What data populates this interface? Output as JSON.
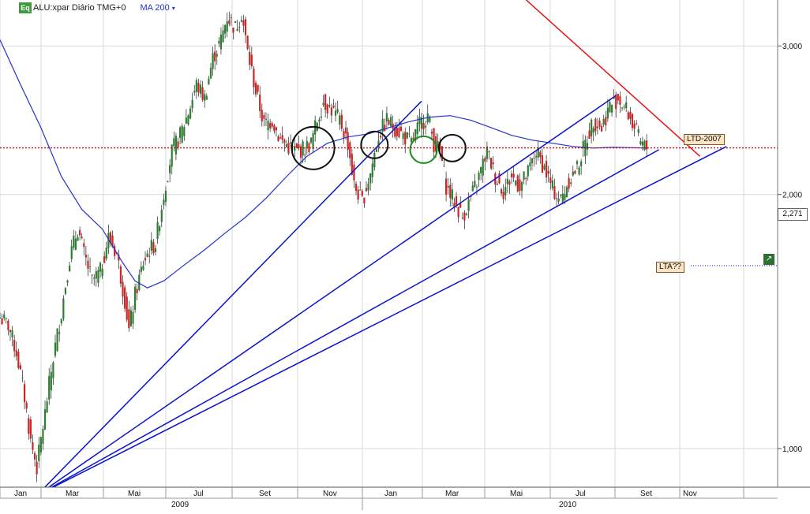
{
  "header": {
    "symbol_icon": "Eq",
    "symbol": "ALU:xpar Diário TMG+0",
    "indicator": "MA 200",
    "indicator_caret": "▾"
  },
  "colors": {
    "moving_average": "#2233cc",
    "trendlines": "#0a14cc",
    "resistance": "#ee1111",
    "price_line": "#cc0000",
    "candle_up": "#2e7d32",
    "candle_down": "#c62828",
    "circle_black": "#111111",
    "circle_green": "#1b8a1b"
  },
  "annotations": {
    "ltd": "LTD-2007",
    "lta": "LTA??",
    "last_price": "2,271",
    "chart_icon": "chart-tool-icon"
  },
  "chart_data": {
    "type": "candlestick",
    "y_scale": "log",
    "ylim": [
      0.9,
      3.4
    ],
    "y_ticks": [
      {
        "value": 1.0,
        "label": "1,000"
      },
      {
        "value": 2.0,
        "label": "2,000"
      },
      {
        "value": 3.0,
        "label": "3,000"
      }
    ],
    "x_ticks": [
      "Jan",
      "Mar",
      "Mai",
      "Jul",
      "Set",
      "Nov",
      "Jan",
      "Mar",
      "Mai",
      "Jul",
      "Set",
      "Nov"
    ],
    "x_years": [
      "2009",
      "2010"
    ],
    "grid": true,
    "close_series": [
      [
        0,
        1.43
      ],
      [
        4,
        1.4
      ],
      [
        8,
        1.3
      ],
      [
        12,
        1.15
      ],
      [
        15,
        1.02
      ],
      [
        18,
        0.95
      ],
      [
        22,
        1.1
      ],
      [
        26,
        1.28
      ],
      [
        30,
        1.45
      ],
      [
        34,
        1.68
      ],
      [
        38,
        1.82
      ],
      [
        41,
        1.7
      ],
      [
        45,
        1.58
      ],
      [
        49,
        1.62
      ],
      [
        53,
        1.78
      ],
      [
        57,
        1.7
      ],
      [
        61,
        1.5
      ],
      [
        63,
        1.38
      ],
      [
        66,
        1.52
      ],
      [
        70,
        1.66
      ],
      [
        73,
        1.72
      ],
      [
        76,
        1.75
      ],
      [
        80,
        2.0
      ],
      [
        84,
        2.25
      ],
      [
        88,
        2.35
      ],
      [
        92,
        2.5
      ],
      [
        96,
        2.7
      ],
      [
        100,
        2.6
      ],
      [
        104,
        2.9
      ],
      [
        108,
        3.05
      ],
      [
        111,
        3.25
      ],
      [
        115,
        3.15
      ],
      [
        118,
        3.28
      ],
      [
        121,
        2.95
      ],
      [
        125,
        2.65
      ],
      [
        129,
        2.42
      ],
      [
        133,
        2.45
      ],
      [
        137,
        2.32
      ],
      [
        141,
        2.28
      ],
      [
        145,
        2.25
      ],
      [
        149,
        2.27
      ],
      [
        152,
        2.3
      ],
      [
        155,
        2.45
      ],
      [
        158,
        2.58
      ],
      [
        162,
        2.52
      ],
      [
        166,
        2.45
      ],
      [
        170,
        2.3
      ],
      [
        173,
        2.05
      ],
      [
        177,
        1.96
      ],
      [
        181,
        2.12
      ],
      [
        185,
        2.35
      ],
      [
        189,
        2.45
      ],
      [
        193,
        2.4
      ],
      [
        197,
        2.35
      ],
      [
        201,
        2.3
      ],
      [
        205,
        2.42
      ],
      [
        209,
        2.48
      ],
      [
        212,
        2.3
      ],
      [
        215,
        2.25
      ],
      [
        218,
        2.05
      ],
      [
        222,
        1.96
      ],
      [
        226,
        1.88
      ],
      [
        230,
        1.98
      ],
      [
        234,
        2.1
      ],
      [
        238,
        2.25
      ],
      [
        242,
        2.1
      ],
      [
        246,
        2.02
      ],
      [
        250,
        2.1
      ],
      [
        254,
        2.05
      ],
      [
        258,
        2.12
      ],
      [
        262,
        2.25
      ],
      [
        266,
        2.15
      ],
      [
        270,
        2.03
      ],
      [
        274,
        1.97
      ],
      [
        278,
        2.08
      ],
      [
        282,
        2.15
      ],
      [
        286,
        2.3
      ],
      [
        290,
        2.45
      ],
      [
        294,
        2.4
      ],
      [
        298,
        2.55
      ],
      [
        302,
        2.6
      ],
      [
        306,
        2.52
      ],
      [
        310,
        2.4
      ],
      [
        313,
        2.3
      ],
      [
        316,
        2.271
      ]
    ],
    "moving_average": {
      "name": "MA 200",
      "points": [
        [
          0,
          3.05
        ],
        [
          10,
          2.7
        ],
        [
          20,
          2.4
        ],
        [
          30,
          2.1
        ],
        [
          40,
          1.92
        ],
        [
          50,
          1.82
        ],
        [
          60,
          1.66
        ],
        [
          66,
          1.58
        ],
        [
          72,
          1.55
        ],
        [
          80,
          1.58
        ],
        [
          90,
          1.65
        ],
        [
          100,
          1.72
        ],
        [
          110,
          1.8
        ],
        [
          120,
          1.88
        ],
        [
          130,
          1.98
        ],
        [
          140,
          2.1
        ],
        [
          150,
          2.22
        ],
        [
          160,
          2.3
        ],
        [
          170,
          2.34
        ],
        [
          180,
          2.36
        ],
        [
          190,
          2.4
        ],
        [
          200,
          2.44
        ],
        [
          210,
          2.47
        ],
        [
          220,
          2.48
        ],
        [
          230,
          2.45
        ],
        [
          240,
          2.4
        ],
        [
          250,
          2.35
        ],
        [
          260,
          2.32
        ],
        [
          270,
          2.3
        ],
        [
          280,
          2.28
        ],
        [
          290,
          2.27
        ],
        [
          300,
          2.275
        ],
        [
          316,
          2.27
        ]
      ]
    },
    "reference_price": 2.271,
    "trendlines": [
      {
        "from": [
          18,
          0.88
        ],
        "to": [
          206,
          2.58
        ],
        "color": "blue"
      },
      {
        "from": [
          18,
          0.88
        ],
        "to": [
          301,
          2.62
        ],
        "color": "blue"
      },
      {
        "from": [
          18,
          0.88
        ],
        "to": [
          322,
          2.26
        ],
        "color": "blue"
      },
      {
        "from": [
          18,
          0.88
        ],
        "to": [
          355,
          2.28
        ],
        "color": "blue"
      },
      {
        "from": [
          256,
          3.42
        ],
        "to": [
          342,
          2.22
        ],
        "color": "red",
        "label": "LTD-2007"
      }
    ],
    "markers": [
      {
        "x": 153,
        "y": 2.27,
        "kind": "circle",
        "color": "black",
        "size": "large"
      },
      {
        "x": 183,
        "y": 2.29,
        "kind": "circle",
        "color": "black",
        "size": "small"
      },
      {
        "x": 207,
        "y": 2.26,
        "kind": "circle",
        "color": "green",
        "size": "small"
      },
      {
        "x": 221,
        "y": 2.27,
        "kind": "circle",
        "color": "black",
        "size": "small"
      }
    ]
  }
}
